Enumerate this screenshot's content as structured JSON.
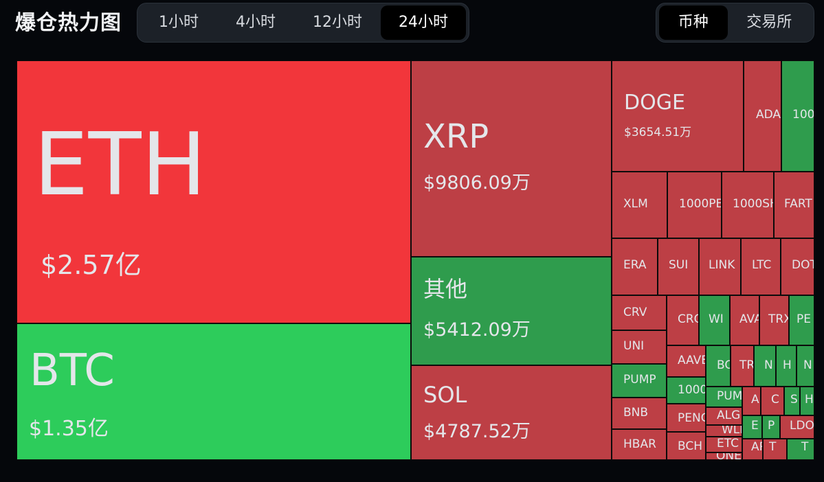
{
  "header": {
    "title": "爆仓热力图",
    "time_tabs": [
      "1小时",
      "4小时",
      "12小时",
      "24小时"
    ],
    "active_time_tab": "24小时",
    "view_tabs": [
      "币种",
      "交易所"
    ],
    "active_view_tab": "币种"
  },
  "colors": {
    "page_background": "#05070b",
    "long_liquidation_red": "#bd3f45",
    "short_liquidation_green": "#2f9c4d",
    "highlight_red": "#f2363b",
    "highlight_green": "#2dcc5b"
  },
  "treemap": {
    "tiles": [
      {
        "symbol": "ETH",
        "value": "$2.57亿",
        "color": "highlight_red"
      },
      {
        "symbol": "BTC",
        "value": "$1.35亿",
        "color": "highlight_green"
      },
      {
        "symbol": "XRP",
        "value": "$9806.09万",
        "color": "long_liquidation_red"
      },
      {
        "symbol": "其他",
        "value": "$5412.09万",
        "color": "short_liquidation_green"
      },
      {
        "symbol": "SOL",
        "value": "$4787.52万",
        "color": "long_liquidation_red"
      },
      {
        "symbol": "DOGE",
        "value": "$3654.51万",
        "color": "long_liquidation_red"
      },
      {
        "symbol": "ADA",
        "color": "long_liquidation_red"
      },
      {
        "symbol": "100",
        "color": "short_liquidation_green"
      },
      {
        "symbol": "XLM",
        "color": "long_liquidation_red"
      },
      {
        "symbol": "1000PE",
        "color": "long_liquidation_red"
      },
      {
        "symbol": "1000SH",
        "color": "long_liquidation_red"
      },
      {
        "symbol": "FART",
        "color": "long_liquidation_red"
      },
      {
        "symbol": "ERA",
        "color": "long_liquidation_red"
      },
      {
        "symbol": "SUI",
        "color": "long_liquidation_red"
      },
      {
        "symbol": "LINK",
        "color": "long_liquidation_red"
      },
      {
        "symbol": "LTC",
        "color": "long_liquidation_red"
      },
      {
        "symbol": "DOT",
        "color": "long_liquidation_red"
      },
      {
        "symbol": "CRV",
        "color": "long_liquidation_red"
      },
      {
        "symbol": "UNI",
        "color": "long_liquidation_red"
      },
      {
        "symbol": "PUMP",
        "color": "short_liquidation_green"
      },
      {
        "symbol": "BNB",
        "color": "long_liquidation_red"
      },
      {
        "symbol": "HBAR",
        "color": "long_liquidation_red"
      },
      {
        "symbol": "CRO",
        "color": "long_liquidation_red"
      },
      {
        "symbol": "WI",
        "color": "short_liquidation_green"
      },
      {
        "symbol": "AVA",
        "color": "long_liquidation_red"
      },
      {
        "symbol": "TRX",
        "color": "long_liquidation_red"
      },
      {
        "symbol": "PE",
        "color": "short_liquidation_green"
      },
      {
        "symbol": "AAVE",
        "color": "long_liquidation_red"
      },
      {
        "symbol": "1000",
        "color": "short_liquidation_green"
      },
      {
        "symbol": "PENG",
        "color": "long_liquidation_red"
      },
      {
        "symbol": "BCH",
        "color": "long_liquidation_red"
      },
      {
        "symbol": "BO",
        "color": "short_liquidation_green"
      },
      {
        "symbol": "TR",
        "color": "long_liquidation_red"
      },
      {
        "symbol": "N",
        "color": "short_liquidation_green"
      },
      {
        "symbol": "H",
        "color": "short_liquidation_green"
      },
      {
        "symbol": "N",
        "color": "short_liquidation_green"
      },
      {
        "symbol": "PUM",
        "color": "short_liquidation_green"
      },
      {
        "symbol": "A",
        "color": "long_liquidation_red"
      },
      {
        "symbol": "C",
        "color": "long_liquidation_red"
      },
      {
        "symbol": "S",
        "color": "short_liquidation_green"
      },
      {
        "symbol": "H",
        "color": "short_liquidation_green"
      },
      {
        "symbol": "ALG",
        "color": "long_liquidation_red"
      },
      {
        "symbol": "WLI",
        "color": "short_liquidation_green"
      },
      {
        "symbol": "E",
        "color": "long_liquidation_red"
      },
      {
        "symbol": "P",
        "color": "long_liquidation_red"
      },
      {
        "symbol": "LDO",
        "color": "long_liquidation_red"
      },
      {
        "symbol": "ETC",
        "color": "long_liquidation_red"
      },
      {
        "symbol": "ONE",
        "color": "long_liquidation_red"
      },
      {
        "symbol": "ARE",
        "color": "long_liquidation_red"
      },
      {
        "symbol": "T",
        "color": "long_liquidation_red"
      },
      {
        "symbol": "T",
        "color": "short_liquidation_green"
      }
    ]
  }
}
